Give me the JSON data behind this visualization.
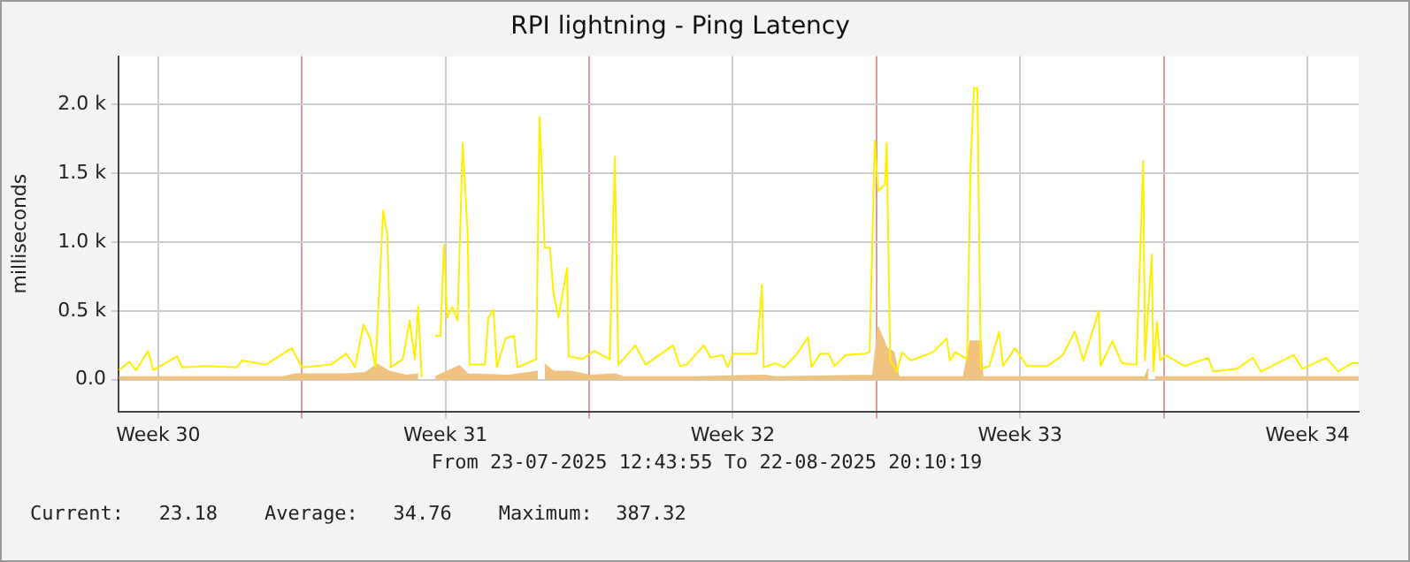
{
  "chart_data": {
    "type": "line",
    "title": "RPI lightning - Ping Latency",
    "ylabel": "milliseconds",
    "xlim": [
      "2025-07-23T12:44",
      "2025-08-22T18:00"
    ],
    "xticks": [
      {
        "value": "2025-07-24T12:00",
        "label": "Week 30"
      },
      {
        "value": "2025-07-28",
        "label": null
      },
      {
        "value": "2025-07-31T12:00",
        "label": "Week 31"
      },
      {
        "value": "2025-08-04",
        "label": null
      },
      {
        "value": "2025-08-07T12:00",
        "label": "Week 32"
      },
      {
        "value": "2025-08-11",
        "label": null
      },
      {
        "value": "2025-08-14T12:00",
        "label": "Week 33"
      },
      {
        "value": "2025-08-18",
        "label": null
      },
      {
        "value": "2025-08-21T12:00",
        "label": "Week 34"
      }
    ],
    "ylim": [
      -230,
      2350
    ],
    "yticks": [
      {
        "value": 0,
        "label": "0.0"
      },
      {
        "value": 500,
        "label": "0.5 k"
      },
      {
        "value": 1000,
        "label": "1.0 k"
      },
      {
        "value": 1500,
        "label": "1.5 k"
      },
      {
        "value": 2000,
        "label": "2.0 k"
      }
    ],
    "grid": true,
    "legend": false,
    "annotations": [
      "From 23-07-2025 12:43:55 To 22-08-2025 20:10:19",
      "Current:   23.18    Average:   34.76    Maximum:  387.32"
    ],
    "series": [
      {
        "type": "area",
        "color": "#f0c27f",
        "x": [
          "2025-07-23T13:00",
          "2025-07-27T13:00",
          "2025-07-27T20:00",
          "2025-07-29T01:00",
          "2025-07-29T13:00",
          "2025-07-29T20:00",
          "2025-07-30T03:00",
          "2025-07-30T13:00",
          "2025-07-30T20:00",
          "2025-07-31T01:00",
          "2025-07-31T06:00",
          "2025-07-31T13:00",
          "2025-07-31T20:00",
          "2025-08-01T01:00",
          "2025-08-02T01:00",
          "2025-08-02T18:00",
          "2025-08-02T20:00",
          "2025-08-02T22:00",
          "2025-08-03T03:00",
          "2025-08-03T13:00",
          "2025-08-04T01:00",
          "2025-08-04T15:00",
          "2025-08-04T20:00",
          "2025-08-06T13:00",
          "2025-08-08T06:00",
          "2025-08-08T13:00",
          "2025-08-10T22:00",
          "2025-08-11T01:00",
          "2025-08-11T06:00",
          "2025-08-11T10:00",
          "2025-08-11T13:00",
          "2025-08-13T03:00",
          "2025-08-13T07:00",
          "2025-08-13T13:00",
          "2025-08-13T14:00",
          "2025-08-17T13:00",
          "2025-08-17T15:00",
          "2025-08-17T16:00",
          "2025-08-17T19:00",
          "2025-08-22T18:00"
        ],
        "values": [
          20,
          20,
          40,
          40,
          50,
          110,
          60,
          30,
          40,
          null,
          20,
          60,
          100,
          40,
          30,
          60,
          null,
          110,
          60,
          60,
          30,
          40,
          20,
          20,
          30,
          20,
          30,
          380,
          230,
          200,
          20,
          20,
          280,
          280,
          20,
          20,
          80,
          null,
          20,
          20
        ]
      },
      {
        "color": "#ffee00",
        "x": [
          "2025-07-23T13:00",
          "2025-07-23T19:00",
          "2025-07-23T23:00",
          "2025-07-24T06:00",
          "2025-07-24T09:00",
          "2025-07-24T23:00",
          "2025-07-25T02:00",
          "2025-07-25T16:00",
          "2025-07-26T10:00",
          "2025-07-26T13:00",
          "2025-07-27T03:00",
          "2025-07-27T18:00",
          "2025-07-28T00:00",
          "2025-07-28T17:00",
          "2025-07-29T02:00",
          "2025-07-29T07:00",
          "2025-07-29T12:00",
          "2025-07-29T16:00",
          "2025-07-29T19:00",
          "2025-07-29T23:30",
          "2025-07-30T02:00",
          "2025-07-30T04:00",
          "2025-07-30T11:00",
          "2025-07-30T15:00",
          "2025-07-30T18:00",
          "2025-07-30T20:00",
          "2025-07-30T22:00",
          "2025-07-31T01:00",
          "2025-07-31T06:00",
          "2025-07-31T09:00",
          "2025-07-31T11:00",
          "2025-07-31T13:00",
          "2025-07-31T16:00",
          "2025-07-31T19:00",
          "2025-07-31T22:00",
          "2025-08-01T01:00",
          "2025-08-01T02:00",
          "2025-08-01T11:00",
          "2025-08-01T13:00",
          "2025-08-01T16:00",
          "2025-08-01T18:00",
          "2025-08-01T23:00",
          "2025-08-02T04:00",
          "2025-08-02T06:00",
          "2025-08-02T17:00",
          "2025-08-02T19:00",
          "2025-08-02T22:00",
          "2025-08-03T01:00",
          "2025-08-03T03:00",
          "2025-08-03T06:00",
          "2025-08-03T11:00",
          "2025-08-03T12:00",
          "2025-08-03T20:00",
          "2025-08-04T03:00",
          "2025-08-04T12:00",
          "2025-08-04T15:00",
          "2025-08-04T17:00",
          "2025-08-05T03:00",
          "2025-08-05T09:00",
          "2025-08-06T01:00",
          "2025-08-06T05:00",
          "2025-08-06T09:00",
          "2025-08-06T19:00",
          "2025-08-06T23:00",
          "2025-08-07T06:00",
          "2025-08-07T09:00",
          "2025-08-07T12:00",
          "2025-08-07T19:00",
          "2025-08-08T02:00",
          "2025-08-08T05:00",
          "2025-08-08T06:00",
          "2025-08-08T13:00",
          "2025-08-08T18:00",
          "2025-08-09T01:00",
          "2025-08-09T08:00",
          "2025-08-09T10:00",
          "2025-08-09T15:00",
          "2025-08-09T20:00",
          "2025-08-09T23:30",
          "2025-08-10T06:00",
          "2025-08-10T17:00",
          "2025-08-10T20:00",
          "2025-08-10T23:00",
          "2025-08-11T01:00",
          "2025-08-11T05:00",
          "2025-08-11T06:00",
          "2025-08-11T08:00",
          "2025-08-11T12:00",
          "2025-08-11T15:00",
          "2025-08-11T20:00",
          "2025-08-12T09:00",
          "2025-08-12T17:00",
          "2025-08-12T19:00",
          "2025-08-12T22:00",
          "2025-08-13T05:00",
          "2025-08-13T07:00",
          "2025-08-13T09:00",
          "2025-08-13T11:00",
          "2025-08-13T13:00",
          "2025-08-13T18:00",
          "2025-08-13T23:45",
          "2025-08-14T02:00",
          "2025-08-14T09:00",
          "2025-08-14T16:00",
          "2025-08-15T04:00",
          "2025-08-15T13:00",
          "2025-08-15T20:00",
          "2025-08-16T01:00",
          "2025-08-16T10:00",
          "2025-08-16T11:00",
          "2025-08-16T18:00",
          "2025-08-16T23:30",
          "2025-08-17T08:00",
          "2025-08-17T12:00",
          "2025-08-17T13:00",
          "2025-08-17T17:00",
          "2025-08-17T18:00",
          "2025-08-17T20:00",
          "2025-08-17T22:00",
          "2025-08-18T01:00",
          "2025-08-18T12:00",
          "2025-08-19T02:00",
          "2025-08-19T05:00",
          "2025-08-19T19:00",
          "2025-08-20T04:00",
          "2025-08-20T09:00",
          "2025-08-21T04:00",
          "2025-08-21T09:00",
          "2025-08-21T23:00",
          "2025-08-22T06:00",
          "2025-08-22T14:00",
          "2025-08-22T18:00"
        ],
        "values": [
          70,
          130,
          70,
          210,
          70,
          170,
          90,
          100,
          90,
          140,
          110,
          230,
          90,
          110,
          190,
          90,
          400,
          300,
          90,
          1230,
          1040,
          90,
          150,
          430,
          150,
          530,
          20,
          null,
          320,
          320,
          980,
          450,
          530,
          430,
          1720,
          1040,
          110,
          110,
          450,
          510,
          90,
          300,
          320,
          90,
          150,
          1910,
          960,
          960,
          640,
          450,
          810,
          170,
          150,
          210,
          150,
          1620,
          110,
          250,
          110,
          250,
          100,
          110,
          250,
          160,
          180,
          90,
          190,
          190,
          190,
          690,
          90,
          120,
          90,
          180,
          310,
          90,
          190,
          190,
          100,
          180,
          190,
          200,
          1740,
          1370,
          1420,
          1720,
          140,
          60,
          200,
          140,
          200,
          300,
          140,
          200,
          150,
          1550,
          2120,
          2120,
          80,
          100,
          350,
          100,
          230,
          100,
          100,
          180,
          350,
          140,
          500,
          100,
          280,
          120,
          110,
          1590,
          140,
          910,
          60,
          420,
          140,
          180,
          100,
          160,
          60,
          80,
          160,
          60,
          180,
          80,
          160,
          60,
          120,
          120
        ]
      }
    ]
  }
}
